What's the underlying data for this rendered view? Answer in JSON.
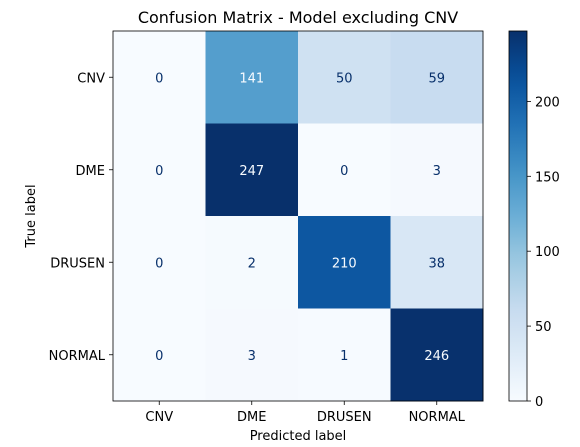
{
  "chart_data": {
    "type": "heatmap",
    "title": "Confusion Matrix - Model excluding CNV",
    "xlabel": "Predicted label",
    "ylabel": "True label",
    "x_categories": [
      "CNV",
      "DME",
      "DRUSEN",
      "NORMAL"
    ],
    "y_categories": [
      "CNV",
      "DME",
      "DRUSEN",
      "NORMAL"
    ],
    "values": [
      [
        0,
        141,
        50,
        59
      ],
      [
        0,
        247,
        0,
        3
      ],
      [
        0,
        2,
        210,
        38
      ],
      [
        0,
        3,
        1,
        246
      ]
    ],
    "colormap": "Blues",
    "color_low": "#f7fbff",
    "color_high": "#08306b",
    "text_dark": "#08306b",
    "text_light": "#f7fbff",
    "colorbar": {
      "range": [
        0,
        247
      ],
      "ticks": [
        0,
        50,
        100,
        150,
        200
      ]
    }
  }
}
